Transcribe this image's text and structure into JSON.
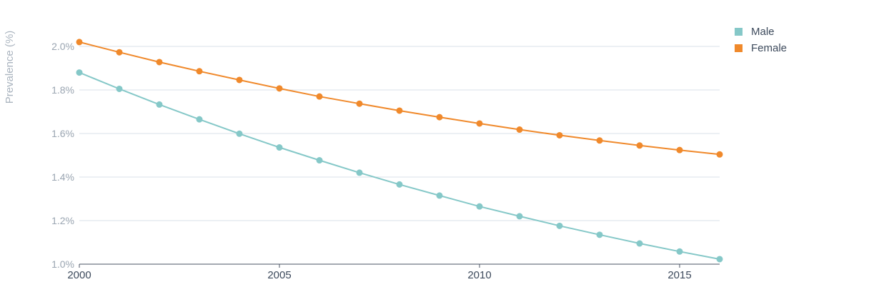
{
  "chart_data": {
    "type": "line",
    "title": "",
    "xlabel": "",
    "ylabel": "Prevalence (%)",
    "x": [
      2000,
      2001,
      2002,
      2003,
      2004,
      2005,
      2006,
      2007,
      2008,
      2009,
      2010,
      2011,
      2012,
      2013,
      2014,
      2015,
      2016
    ],
    "xlim": [
      2000,
      2016
    ],
    "ylim": [
      1.0,
      2.0
    ],
    "x_ticks": [
      2000,
      2005,
      2010,
      2015
    ],
    "x_tick_labels": [
      "2000",
      "2005",
      "2010",
      "2015"
    ],
    "y_ticks": [
      1.0,
      1.2,
      1.4,
      1.6,
      1.8,
      2.0
    ],
    "y_tick_labels": [
      "1.0%",
      "1.2%",
      "1.4%",
      "1.6%",
      "1.8%",
      "2.0%"
    ],
    "grid": true,
    "legend_position": "top-right",
    "series": [
      {
        "name": "Male",
        "color": "#85c8c8",
        "values": [
          1.88,
          1.805,
          1.733,
          1.665,
          1.599,
          1.536,
          1.477,
          1.42,
          1.366,
          1.315,
          1.265,
          1.22,
          1.176,
          1.135,
          1.095,
          1.058,
          1.023
        ]
      },
      {
        "name": "Female",
        "color": "#f0892b",
        "values": [
          2.02,
          1.973,
          1.928,
          1.886,
          1.846,
          1.807,
          1.77,
          1.737,
          1.705,
          1.675,
          1.646,
          1.618,
          1.592,
          1.568,
          1.545,
          1.524,
          1.504
        ]
      }
    ]
  }
}
